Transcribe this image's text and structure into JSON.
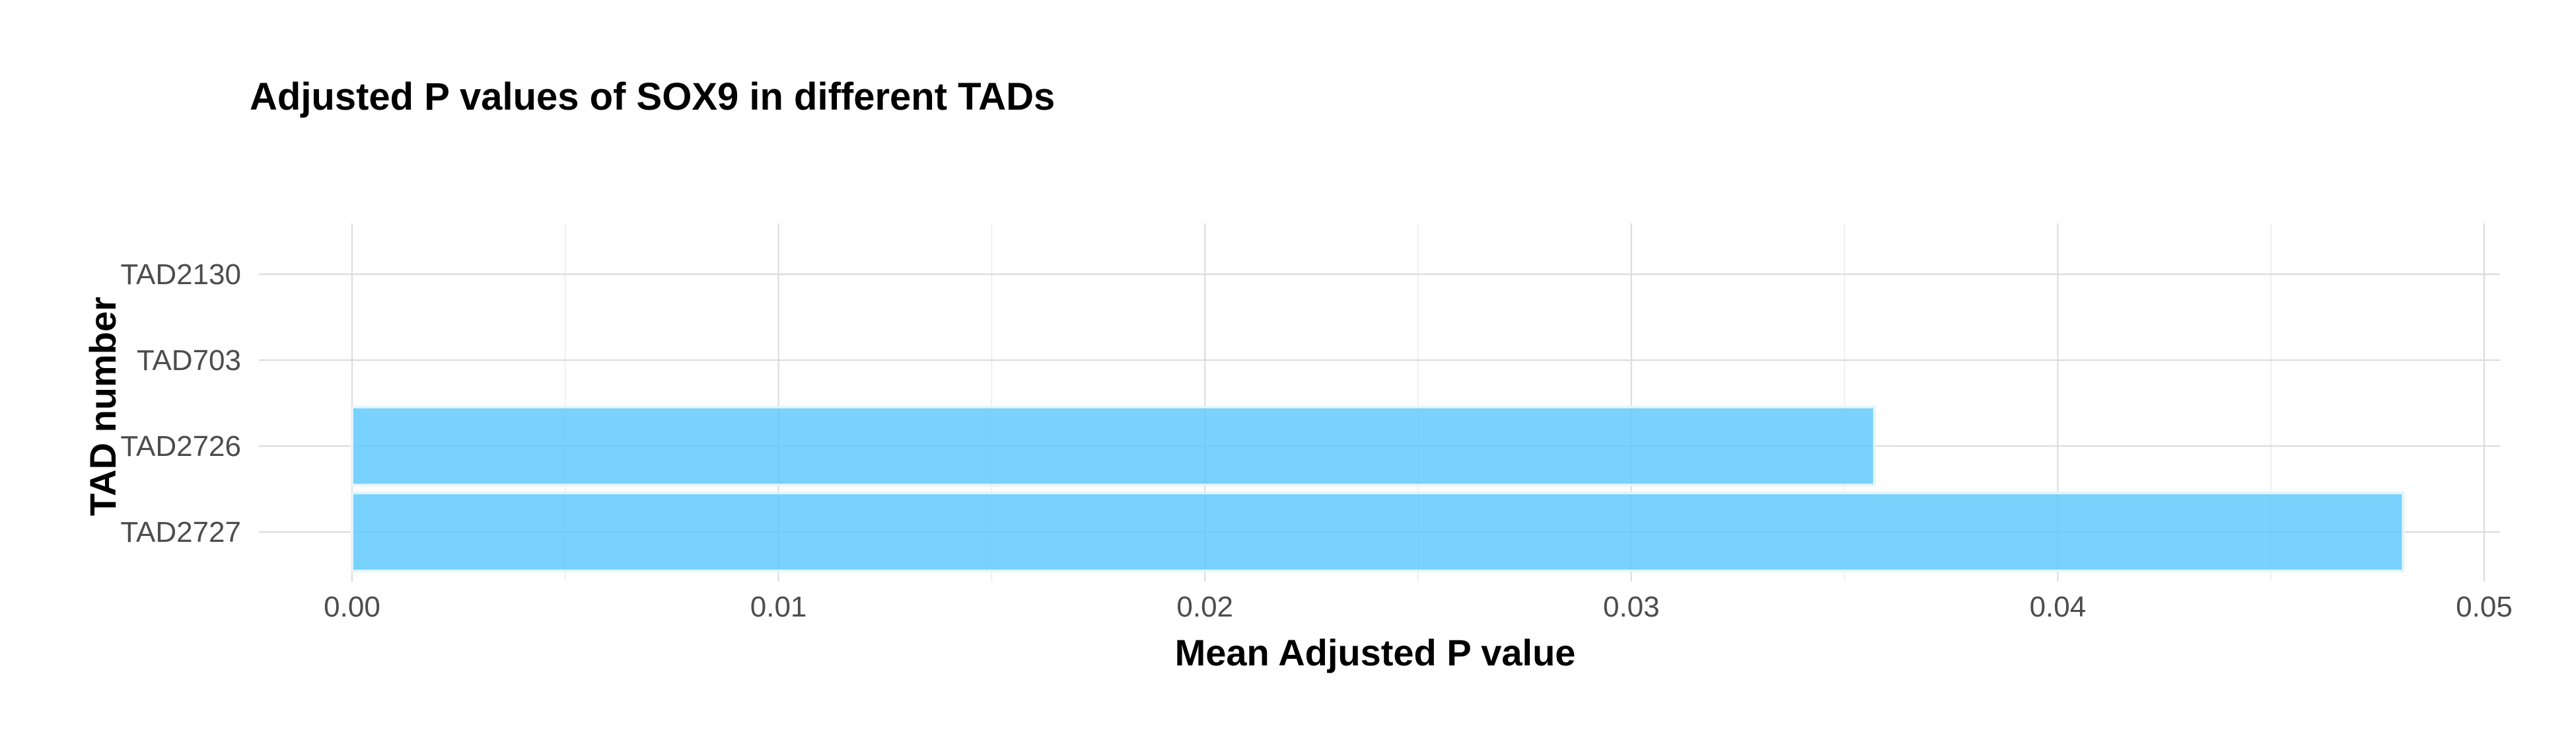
{
  "chart_data": {
    "type": "bar",
    "orientation": "horizontal",
    "title": "Adjusted P values of SOX9 in different TADs",
    "xlabel": "Mean Adjusted P value",
    "ylabel": "TAD number",
    "categories": [
      "TAD2130",
      "TAD703",
      "TAD2726",
      "TAD2727"
    ],
    "values": [
      0,
      0,
      0.0357,
      0.0481
    ],
    "xlim": [
      0,
      0.05
    ],
    "x_ticks": [
      "0.00",
      "0.01",
      "0.02",
      "0.03",
      "0.04",
      "0.05"
    ],
    "grid": true,
    "bar_color": "#5bc8fb"
  }
}
